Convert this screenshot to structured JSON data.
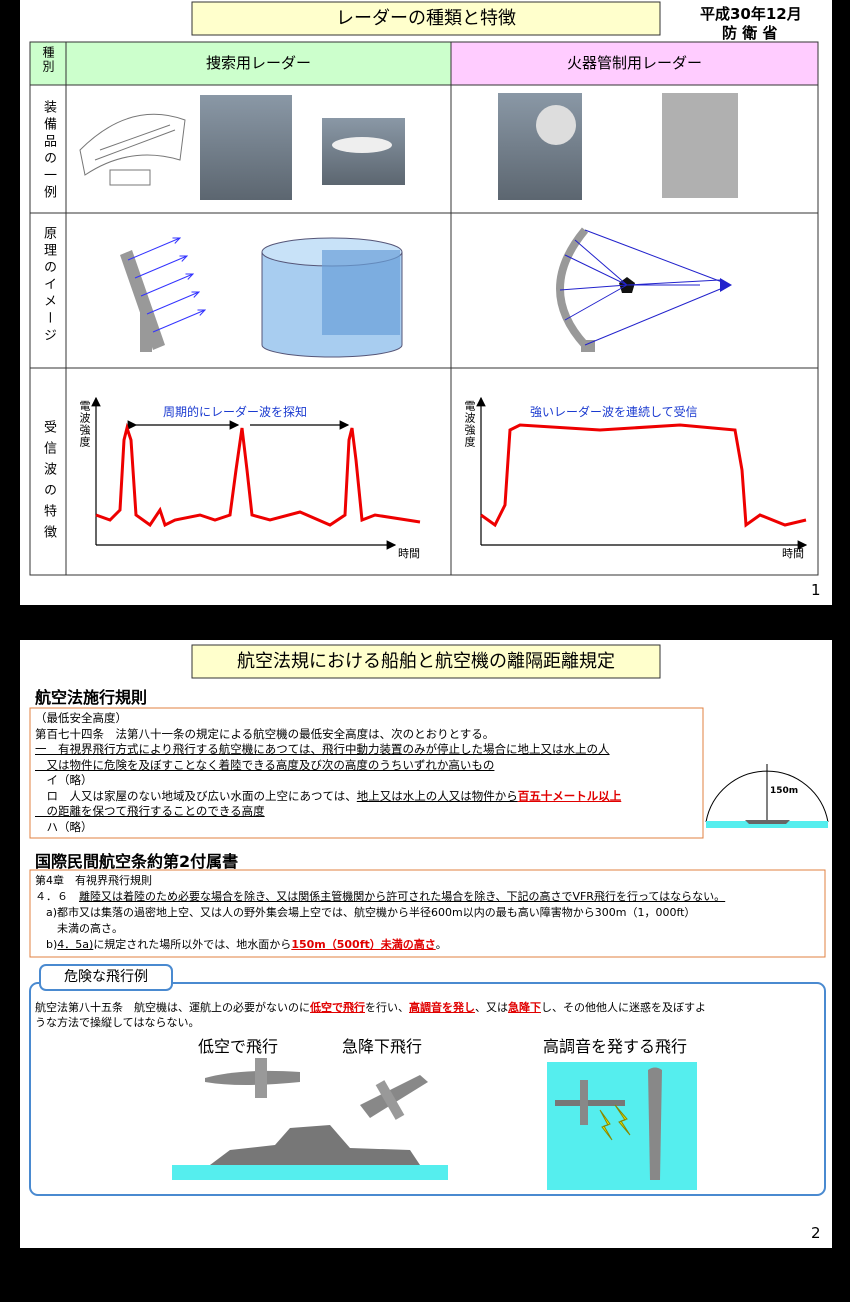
{
  "slide1": {
    "title": "レーダーの種類と特徴",
    "date": "平成30年12月",
    "org": "防 衛 省",
    "header": [
      "種別",
      "捜索用レーダー",
      "火器管制用レーダー"
    ],
    "row_labels": [
      "装備品の一例",
      "原理のイメージ",
      "受信波の特徴"
    ],
    "charts": [
      {
        "y_label": "電波強度",
        "x_label": "時間",
        "annotation": "周期的にレーダー波を探知"
      },
      {
        "y_label": "電波強度",
        "x_label": "時間",
        "annotation": "強いレーダー波を連続して受信"
      }
    ],
    "page": 1
  },
  "slide2": {
    "title": "航空法規における船舶と航空機の離隔距離規定",
    "section1": {
      "heading": "航空法施行規則",
      "lines": [
        [
          "（最低安全高度）"
        ],
        [
          "第百七十四条　法第八十一条の規定による航空機の最低安全高度は、次のとおりとする。"
        ],
        [
          {
            "text": "一　有視界飛行方式により飛行する航空機にあつては、飛行中動力装置のみが停止した場合に地上又は水上の人",
            "style": "underline"
          }
        ],
        [
          {
            "text": "　又は物件に危険を及ぼすことなく着陸できる高度及び次の高度のうちいずれか高いもの",
            "style": "underline"
          }
        ],
        [
          "　イ（略）"
        ],
        [
          "　ロ　人又は家屋のない地域及び広い水面の上空にあつては、",
          {
            "text": "地上又は水上の人又は物件から",
            "style": "underline"
          },
          {
            "text": "百五十メートル以上",
            "style": "red"
          }
        ],
        [
          {
            "text": "　の距離を保つて飛行することのできる高度",
            "style": "underline"
          }
        ],
        [
          "　ハ（略）"
        ]
      ],
      "diagram_label": "150m"
    },
    "section2": {
      "heading": "国際民間航空条約第2付属書",
      "lines": [
        [
          "第4章　有視界飛行規則"
        ],
        [
          "４．６　",
          {
            "text": "離陸又は着陸のため必要な場合を除き、又は関係主管機関から許可された場合を除き、下記の高さでVFR飛行を行ってはならない。",
            "style": "underline"
          }
        ],
        [
          "　a)都市又は集落の過密地上空、又は人の野外集会場上空では、航空機から半径600m以内の最も高い障害物から300m（1，000ft）"
        ],
        [
          "　　未満の高さ。"
        ],
        [
          "　b)",
          {
            "text": "4．5a)",
            "style": "underline"
          },
          "に規定された場所以外では、地水面から",
          {
            "text": "150m（500ft）未満の高さ",
            "style": "red"
          },
          "。"
        ]
      ]
    },
    "section3": {
      "heading": "危険な飛行例",
      "lines": [
        [
          "航空法第八十五条　航空機は、運航上の必要がないのに",
          {
            "text": "低空で飛行",
            "style": "red"
          },
          "を行い、",
          {
            "text": "高調音を発し",
            "style": "red"
          },
          "、又は",
          {
            "text": "急降下",
            "style": "red"
          },
          "し、その他他人に迷惑を及ぼすよ"
        ],
        [
          "うな方法で操縦してはならない。"
        ]
      ],
      "examples": [
        "低空で飛行",
        "急降下飛行",
        "高調音を発する飛行"
      ]
    },
    "page": 2
  }
}
